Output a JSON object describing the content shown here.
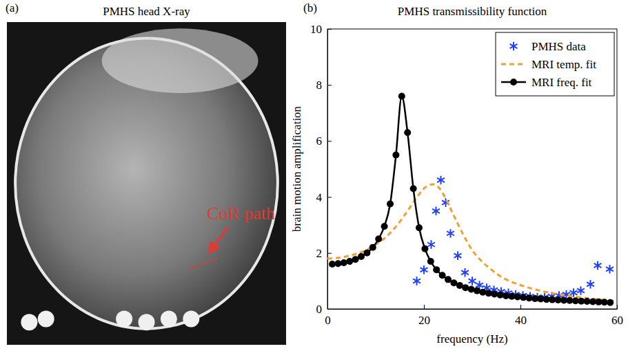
{
  "panel_a": {
    "letter": "(a)",
    "title": "PMHS head X-ray",
    "annotation": "CoR path"
  },
  "chart_data": {
    "type": "line",
    "letter": "(b)",
    "title": "PMHS transmissibility function",
    "x_label": "frequency (Hz)",
    "y_label": "brain motion amplification",
    "xlim": [
      0,
      60
    ],
    "xticks": [
      0,
      20,
      40,
      60
    ],
    "ylim": [
      0,
      10
    ],
    "yticks": [
      0,
      2,
      4,
      6,
      8,
      10
    ],
    "grid": false,
    "legend": "upper right",
    "series": [
      {
        "name": "PMHS data",
        "type": "scatter",
        "color": "#2040ff",
        "marker": "asterisk",
        "line_style": "none",
        "x": [
          18.5,
          20,
          21.5,
          22.5,
          23.5,
          24.5,
          25.5,
          27,
          28.5,
          30,
          31.5,
          33,
          34.5,
          36,
          37.5,
          39,
          40.5,
          42,
          43.5,
          45,
          46.5,
          48,
          49.5,
          51,
          52.5,
          54.5,
          56,
          58.5
        ],
        "values": [
          1.0,
          1.4,
          2.3,
          3.5,
          4.6,
          3.8,
          2.7,
          1.9,
          1.3,
          1.0,
          0.85,
          0.75,
          0.68,
          0.62,
          0.57,
          0.52,
          0.48,
          0.45,
          0.42,
          0.42,
          0.45,
          0.48,
          0.52,
          0.58,
          0.65,
          0.88,
          1.55,
          1.42
        ]
      },
      {
        "name": "MRI temp. fit",
        "type": "line",
        "color": "#f0a030",
        "marker": "none",
        "line_style": "dashed",
        "x": [
          0,
          2,
          4,
          6,
          8,
          10,
          12,
          14,
          16,
          18,
          20,
          21,
          22,
          23,
          24,
          26,
          28,
          30,
          32,
          34,
          36,
          38,
          40,
          43,
          46,
          50,
          54,
          58,
          60
        ],
        "values": [
          1.8,
          1.82,
          1.88,
          1.97,
          2.1,
          2.3,
          2.55,
          2.9,
          3.35,
          3.85,
          4.3,
          4.42,
          4.45,
          4.35,
          4.1,
          3.4,
          2.7,
          2.1,
          1.7,
          1.4,
          1.15,
          0.98,
          0.85,
          0.7,
          0.58,
          0.47,
          0.38,
          0.31,
          0.28
        ]
      },
      {
        "name": "MRI freq. fit",
        "type": "line",
        "color": "#000000",
        "marker": "circle",
        "line_style": "solid",
        "x": [
          1,
          2.2,
          3.4,
          4.6,
          5.8,
          7,
          8.2,
          9.4,
          10.6,
          11.8,
          13,
          14.2,
          15.4,
          16.6,
          17.8,
          19,
          20.2,
          21.4,
          22.6,
          23.8,
          25,
          26.2,
          27.4,
          28.6,
          29.8,
          31,
          32.2,
          33.4,
          34.6,
          35.8,
          37,
          38.2,
          39.4,
          40.6,
          41.8,
          43,
          44.2,
          45.4,
          46.6,
          47.8,
          49,
          50.2,
          51.4,
          52.6,
          53.8,
          55,
          56.2,
          57.4,
          58.6
        ],
        "values": [
          1.6,
          1.62,
          1.65,
          1.7,
          1.77,
          1.87,
          2.0,
          2.2,
          2.5,
          2.95,
          3.75,
          5.5,
          7.6,
          6.3,
          4.3,
          2.9,
          2.15,
          1.7,
          1.4,
          1.2,
          1.05,
          0.93,
          0.84,
          0.76,
          0.7,
          0.65,
          0.6,
          0.56,
          0.53,
          0.5,
          0.47,
          0.45,
          0.43,
          0.41,
          0.39,
          0.37,
          0.36,
          0.34,
          0.33,
          0.32,
          0.31,
          0.3,
          0.29,
          0.28,
          0.27,
          0.26,
          0.25,
          0.24,
          0.23
        ]
      }
    ]
  }
}
